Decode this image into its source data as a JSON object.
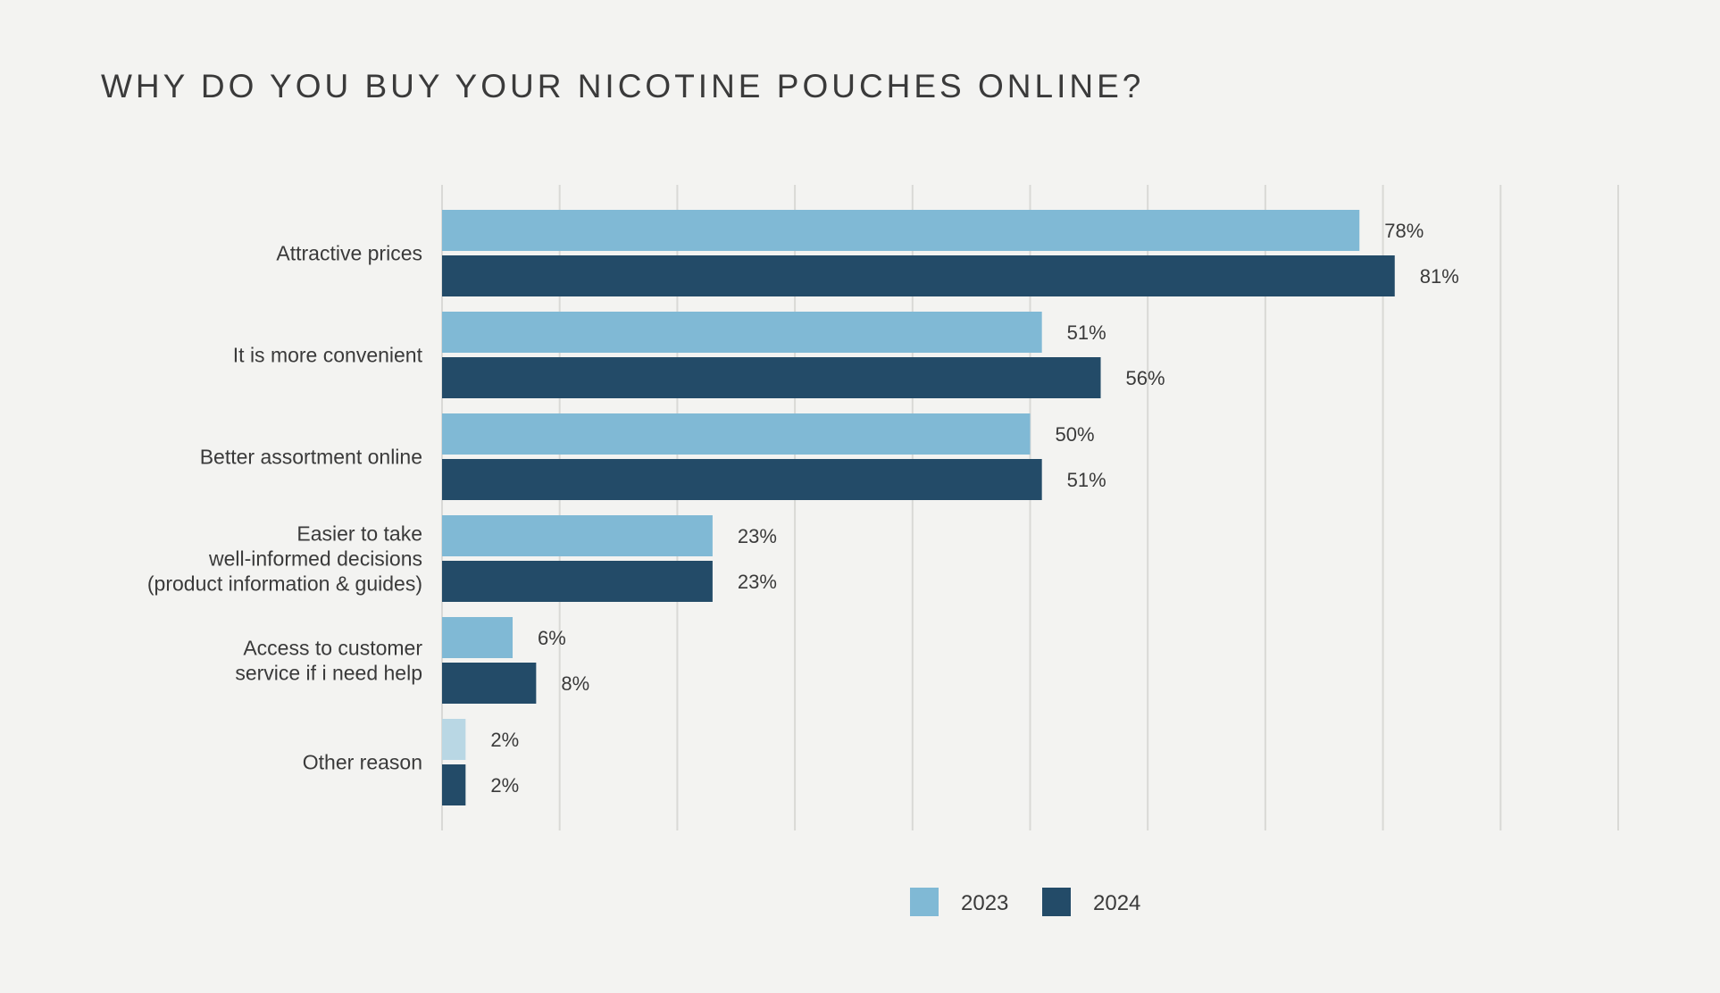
{
  "chart_data": {
    "type": "bar",
    "orientation": "horizontal",
    "title": "WHY DO YOU BUY YOUR NICOTINE POUCHES ONLINE?",
    "categories": [
      [
        "Attractive prices"
      ],
      [
        "It is more convenient"
      ],
      [
        "Better assortment online"
      ],
      [
        "Easier to take",
        "well-informed decisions",
        "(product information & guides)"
      ],
      [
        "Access to customer",
        "service if i need help"
      ],
      [
        "Other reason"
      ]
    ],
    "series": [
      {
        "name": "2023",
        "color": "#80b9d5",
        "values": [
          78,
          51,
          50,
          23,
          6,
          2
        ],
        "labels": [
          "78%",
          "51%",
          "50%",
          "23%",
          "6%",
          "2%"
        ]
      },
      {
        "name": "2024",
        "color": "#234b68",
        "values": [
          81,
          56,
          51,
          23,
          8,
          2
        ],
        "labels": [
          "81%",
          "56%",
          "51%",
          "23%",
          "8%",
          "2%"
        ]
      }
    ],
    "highlight_color_last_2023": "#b9d7e4",
    "xlim": [
      0,
      100
    ],
    "grid": true,
    "grid_color": "#d9d9d6",
    "legend": "bottom"
  }
}
